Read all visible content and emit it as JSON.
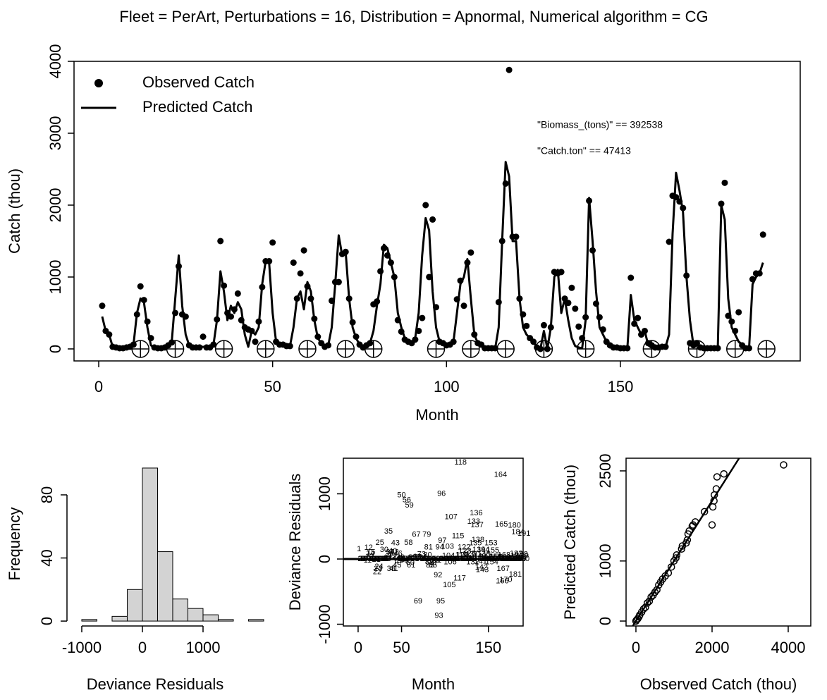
{
  "chart_data": [
    {
      "type": "line",
      "title": "Fleet = PerArt, Perturbations = 16, Distribution = Apnormal, Numerical algorithm = CG",
      "xlabel": "Month",
      "ylabel": "Catch (thou)",
      "x": [
        1,
        2,
        3,
        4,
        5,
        6,
        7,
        8,
        9,
        10,
        11,
        12,
        13,
        14,
        15,
        16,
        17,
        18,
        19,
        20,
        21,
        22,
        23,
        24,
        25,
        26,
        27,
        28,
        29,
        30,
        31,
        32,
        33,
        34,
        35,
        36,
        37,
        38,
        39,
        40,
        41,
        42,
        43,
        44,
        45,
        46,
        47,
        48,
        49,
        50,
        51,
        52,
        53,
        54,
        55,
        56,
        57,
        58,
        59,
        60,
        61,
        62,
        63,
        64,
        65,
        66,
        67,
        68,
        69,
        70,
        71,
        72,
        73,
        74,
        75,
        76,
        77,
        78,
        79,
        80,
        81,
        82,
        83,
        84,
        85,
        86,
        87,
        88,
        89,
        90,
        91,
        92,
        93,
        94,
        95,
        96,
        97,
        98,
        99,
        100,
        101,
        102,
        103,
        104,
        105,
        106,
        107,
        108,
        109,
        110,
        111,
        112,
        113,
        114,
        115,
        116,
        117,
        118,
        119,
        120,
        121,
        122,
        123,
        124,
        125,
        126,
        127,
        128,
        129,
        130,
        131,
        132,
        133,
        134,
        135,
        136,
        137,
        138,
        139,
        140,
        141,
        142,
        143,
        144,
        145,
        146,
        147,
        148,
        149,
        150,
        151,
        152,
        153,
        154,
        155,
        156,
        157,
        158,
        159,
        160,
        161,
        162,
        163,
        164,
        165,
        166,
        167,
        168,
        169,
        170,
        171,
        172,
        173,
        174,
        175,
        176,
        177,
        178,
        179,
        180,
        181,
        182,
        183,
        184,
        185,
        186,
        187,
        188,
        189,
        190,
        191
      ],
      "series": [
        {
          "name": "Observed Catch",
          "color": "#000000",
          "style": "points",
          "values": [
            600,
            250,
            200,
            30,
            20,
            10,
            10,
            20,
            30,
            60,
            480,
            870,
            680,
            380,
            150,
            20,
            10,
            10,
            20,
            50,
            90,
            500,
            1150,
            480,
            450,
            50,
            20,
            20,
            20,
            170,
            20,
            20,
            60,
            410,
            1500,
            880,
            500,
            450,
            550,
            770,
            400,
            300,
            270,
            250,
            100,
            380,
            860,
            1220,
            1220,
            1480,
            100,
            60,
            60,
            40,
            40,
            1200,
            700,
            1050,
            1370,
            870,
            700,
            420,
            170,
            80,
            30,
            50,
            670,
            930,
            930,
            1320,
            1350,
            700,
            370,
            170,
            60,
            20,
            50,
            80,
            620,
            660,
            1080,
            1400,
            1300,
            1200,
            1000,
            400,
            240,
            130,
            100,
            80,
            130,
            250,
            430,
            2000,
            1000,
            1800,
            580,
            100,
            80,
            50,
            60,
            100,
            690,
            950,
            600,
            1200,
            1340,
            200,
            80,
            60,
            10,
            10,
            10,
            10,
            650,
            1500,
            2300,
            3880,
            1560,
            1560,
            700,
            480,
            320,
            150,
            100,
            20,
            0,
            330,
            0,
            300,
            1070,
            1050,
            1070,
            700,
            640,
            850,
            560,
            310,
            150,
            440,
            2060,
            1370,
            630,
            440,
            270,
            100,
            50,
            20,
            20,
            10,
            10,
            10,
            990,
            350,
            430,
            200,
            250,
            80,
            50,
            20,
            20,
            30,
            30,
            1490,
            2130,
            2110,
            2050,
            1960,
            1020,
            80,
            50,
            80,
            20,
            10,
            10,
            10,
            10,
            10,
            2020,
            2310,
            460,
            380,
            250,
            510,
            50,
            10,
            10,
            970,
            1050,
            1050,
            1590
          ]
        },
        {
          "name": "Predicted Catch",
          "color": "#000000",
          "style": "line",
          "values": [
            450,
            250,
            200,
            30,
            20,
            10,
            10,
            20,
            30,
            60,
            500,
            700,
            650,
            300,
            50,
            20,
            10,
            10,
            20,
            50,
            100,
            700,
            1300,
            600,
            200,
            50,
            20,
            20,
            20,
            30,
            20,
            20,
            60,
            400,
            1080,
            800,
            400,
            600,
            500,
            650,
            550,
            200,
            30,
            250,
            200,
            300,
            900,
            1220,
            1200,
            500,
            100,
            60,
            80,
            50,
            40,
            300,
            700,
            800,
            550,
            930,
            800,
            400,
            150,
            80,
            30,
            50,
            300,
            900,
            1580,
            1300,
            1350,
            700,
            300,
            150,
            60,
            20,
            50,
            80,
            250,
            600,
            900,
            1450,
            1400,
            1200,
            1000,
            500,
            300,
            150,
            100,
            80,
            150,
            500,
            1300,
            1820,
            1650,
            800,
            300,
            100,
            80,
            50,
            60,
            100,
            500,
            900,
            1000,
            1250,
            700,
            200,
            80,
            60,
            10,
            10,
            10,
            10,
            300,
            1500,
            2600,
            2400,
            1500,
            1500,
            700,
            300,
            200,
            150,
            100,
            20,
            0,
            250,
            0,
            300,
            1000,
            1100,
            500,
            700,
            400,
            150,
            40,
            20,
            10,
            400,
            2100,
            1500,
            800,
            300,
            200,
            100,
            20,
            20,
            20,
            10,
            10,
            10,
            750,
            400,
            300,
            200,
            250,
            50,
            20,
            20,
            20,
            20,
            30,
            200,
            1600,
            2450,
            2200,
            1900,
            1000,
            400,
            50,
            80,
            20,
            10,
            10,
            10,
            10,
            10,
            2000,
            1800,
            700,
            300,
            200,
            100,
            50,
            10,
            10,
            900,
            1000,
            1050,
            1200
          ]
        }
      ],
      "zero_markers": [
        12,
        22,
        36,
        48,
        60,
        71,
        79,
        97,
        107,
        117,
        128,
        140,
        159,
        172,
        183,
        192
      ],
      "annotations": [
        "\"Biomass_(tons)\" == 392538",
        "\"Catch.ton\" == 47413"
      ],
      "xlim": [
        -7.1,
        201.7
      ],
      "ylim": [
        -167,
        4000
      ],
      "xticks": [
        0,
        50,
        100,
        150
      ],
      "yticks": [
        0,
        1000,
        2000,
        3000,
        4000
      ],
      "legend": "top-left"
    },
    {
      "type": "histogram",
      "xlabel": "Deviance Residuals",
      "ylabel": "Frequency",
      "color": "#d3d3d3",
      "bins": [
        -1000,
        -750,
        -500,
        -250,
        0,
        250,
        500,
        750,
        1000,
        1250,
        1500,
        1750,
        2000
      ],
      "counts": [
        1,
        0,
        3,
        20,
        97,
        44,
        14,
        8,
        4,
        1,
        0,
        1
      ],
      "xlim": [
        -1244,
        1663
      ],
      "ylim": [
        -3.1,
        101
      ],
      "xticks": [
        -1000,
        0,
        1000
      ],
      "yticks": [
        0,
        40,
        80
      ]
    },
    {
      "type": "text-scatter",
      "xlabel": "Month",
      "ylabel": "Deviance Residuals",
      "values": [
        150,
        0,
        0,
        0,
        0,
        0,
        0,
        0,
        0,
        0,
        -20,
        170,
        30,
        80,
        100,
        0,
        0,
        0,
        0,
        0,
        -10,
        -200,
        -150,
        -120,
        250,
        0,
        0,
        0,
        0,
        140,
        0,
        0,
        0,
        10,
        420,
        80,
        100,
        -150,
        50,
        120,
        -150,
        100,
        240,
        0,
        -100,
        80,
        -40,
        0,
        20,
        980,
        0,
        0,
        -20,
        -10,
        0,
        900,
        0,
        250,
        820,
        -60,
        -100,
        20,
        20,
        0,
        0,
        0,
        370,
        30,
        -650,
        20,
        0,
        0,
        70,
        20,
        0,
        0,
        0,
        0,
        370,
        60,
        180,
        -50,
        -100,
        0,
        0,
        -100,
        -60,
        -20,
        0,
        0,
        -20,
        -250,
        -870,
        180,
        -650,
        1000,
        280,
        0,
        0,
        0,
        0,
        0,
        190,
        50,
        -400,
        -50,
        640,
        0,
        0,
        0,
        0,
        0,
        0,
        0,
        350,
        0,
        -300,
        1480,
        60,
        60,
        0,
        180,
        120,
        0,
        0,
        0,
        0,
        80,
        0,
        0,
        70,
        -50,
        570,
        0,
        240,
        700,
        520,
        290,
        140,
        40,
        -40,
        -130,
        -170,
        140,
        70,
        0,
        30,
        0,
        0,
        0,
        0,
        0,
        240,
        -50,
        130,
        0,
        0,
        30,
        30,
        0,
        0,
        10,
        0,
        1290,
        530,
        -340,
        -150,
        60,
        20,
        -320,
        0,
        0,
        0,
        0,
        0,
        0,
        0,
        0,
        20,
        510,
        -240,
        80,
        50,
        410,
        0,
        0,
        0,
        70,
        50,
        0,
        390
      ],
      "xlim": [
        -17,
        190
      ],
      "ylim": [
        -1027,
        1546
      ],
      "xticks": [
        0,
        50,
        150
      ],
      "yticks": [
        -1000,
        0,
        1000
      ]
    },
    {
      "type": "scatter",
      "xlabel": "Observed Catch (thou)",
      "ylabel": "Predicted Catch (thou)",
      "x": [
        0,
        20,
        50,
        80,
        100,
        150,
        200,
        250,
        300,
        350,
        400,
        450,
        500,
        550,
        600,
        650,
        700,
        770,
        850,
        930,
        1000,
        1050,
        1070,
        1200,
        1220,
        1320,
        1350,
        1370,
        1400,
        1480,
        1500,
        1560,
        1800,
        2000,
        2020,
        2050,
        2060,
        2110,
        2130,
        2310,
        3880
      ],
      "y": [
        0,
        20,
        40,
        70,
        100,
        150,
        200,
        230,
        300,
        330,
        400,
        430,
        480,
        520,
        600,
        650,
        700,
        750,
        800,
        900,
        1000,
        1050,
        1100,
        1200,
        1250,
        1300,
        1350,
        1450,
        1500,
        1580,
        1600,
        1650,
        1820,
        1600,
        1900,
        2000,
        2100,
        2200,
        2400,
        2450,
        2600
      ],
      "xlim": [
        -259,
        4593
      ],
      "ylim": [
        -82,
        2711
      ],
      "xticks": [
        0,
        2000,
        4000
      ],
      "yticks": [
        0,
        1000,
        2500
      ]
    }
  ]
}
